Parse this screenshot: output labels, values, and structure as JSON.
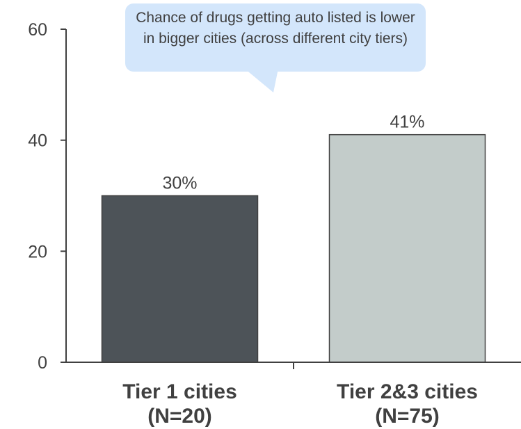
{
  "chart_data": {
    "type": "bar",
    "categories": [
      "Tier 1 cities\n(N=20)",
      "Tier 2&3 cities\n(N=75)"
    ],
    "category_lines": [
      [
        "Tier 1 cities",
        "(N=20)"
      ],
      [
        "Tier 2&3 cities",
        "(N=75)"
      ]
    ],
    "values": [
      30,
      41
    ],
    "value_labels": [
      "30%",
      "41%"
    ],
    "bar_colors": [
      "#4d5358",
      "#c3ccca"
    ],
    "ylim": [
      0,
      60
    ],
    "yticks": [
      0,
      20,
      40,
      60
    ],
    "grid": false,
    "title": "",
    "xlabel": "",
    "ylabel": "",
    "annotation": "Chance of drugs getting auto listed is lower in bigger cities (across different city tiers)",
    "callout_color": "#d3e6fb"
  }
}
